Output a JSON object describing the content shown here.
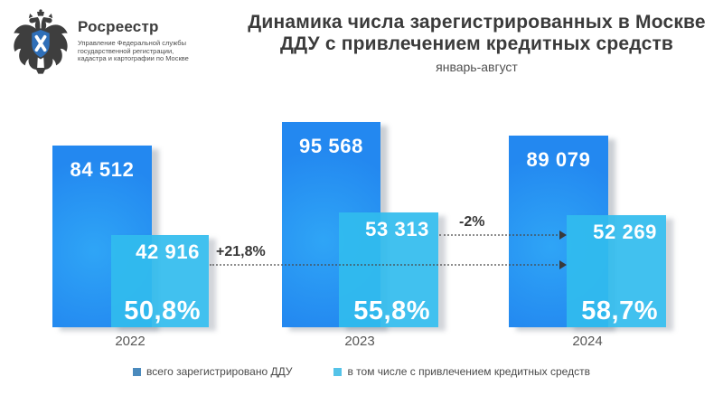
{
  "logo": {
    "org_name": "Росреестр",
    "org_line1": "Управление Федеральной службы",
    "org_line2": "государственной регистрации,",
    "org_line3": "кадастра и картографии по Москве"
  },
  "header": {
    "title_line1": "Динамика числа зарегистрированных в Москве",
    "title_line2": "ДДУ с привлечением кредитных средств",
    "subtitle": "январь-август"
  },
  "chart_data": {
    "type": "bar",
    "title": "Динамика числа зарегистрированных в Москве ДДУ с привлечением кредитных средств",
    "subtitle": "январь-август",
    "categories": [
      "2022",
      "2023",
      "2024"
    ],
    "series": [
      {
        "name": "всего зарегистрировано ДДУ",
        "color": "#2e97f3",
        "values": [
          84512,
          95568,
          89079
        ],
        "labels": [
          "84 512",
          "95 568",
          "89 079"
        ]
      },
      {
        "name": "в том числе с привлечением кредитных средств",
        "color": "#3fc1ee",
        "values": [
          42916,
          53313,
          52269
        ],
        "labels": [
          "42 916",
          "53 313",
          "52 269"
        ]
      }
    ],
    "share_labels": [
      "50,8%",
      "55,8%",
      "58,7%"
    ],
    "annotations": [
      {
        "label": "+21,8%",
        "from_year": "2022",
        "to_year": "2024"
      },
      {
        "label": "-2%",
        "from_year": "2023",
        "to_year": "2024"
      }
    ],
    "legend_position": "bottom",
    "grid": false
  },
  "legend": {
    "items": [
      {
        "label": "всего зарегистрировано ДДУ",
        "color": "#4a8abd"
      },
      {
        "label": "в том числе с привлечением кредитных средств",
        "color": "#55c3e8"
      }
    ]
  }
}
